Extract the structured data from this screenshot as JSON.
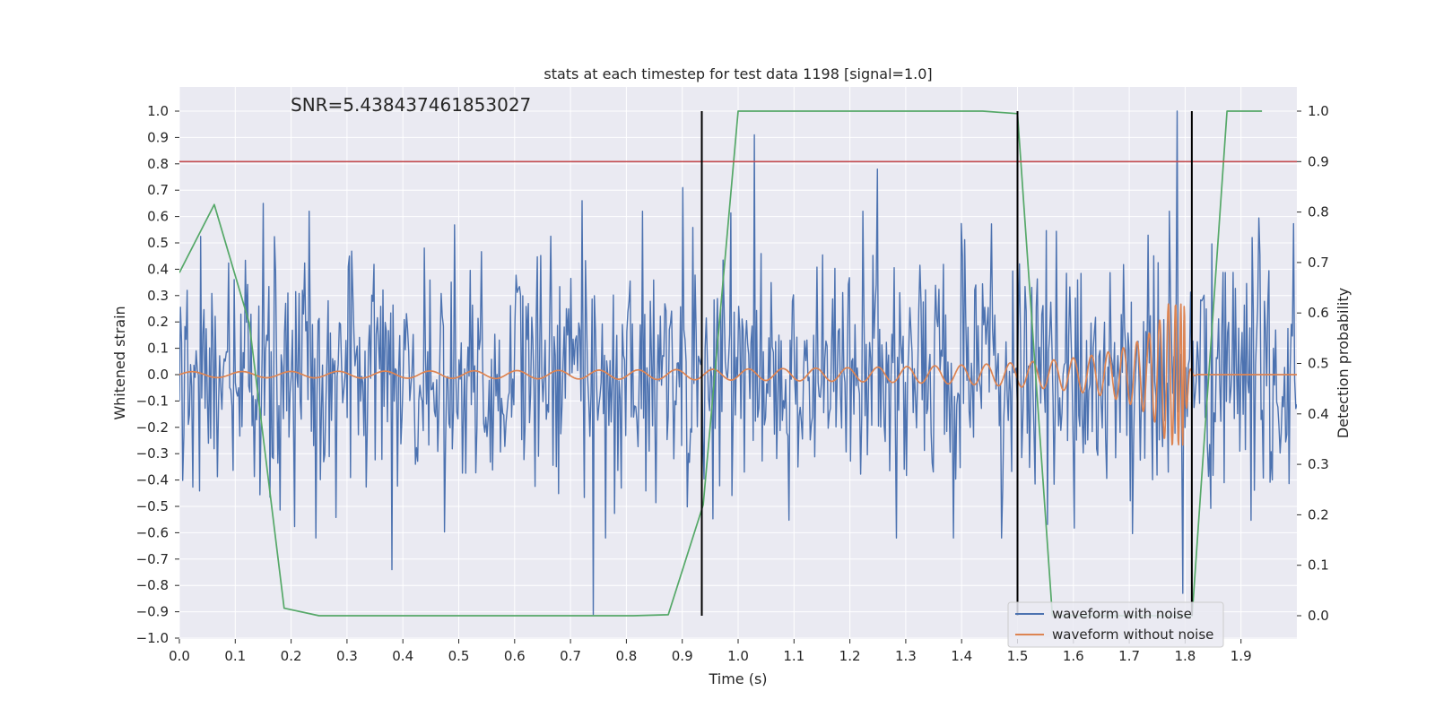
{
  "chart_data": {
    "type": "line",
    "title": "stats at each timestep for test data 1198 [signal=1.0]",
    "xlabel": "Time (s)",
    "ylabel": "Whitened strain",
    "ylabel_right": "Detection probability",
    "xlim": [
      0.0,
      2.0
    ],
    "ylim": [
      -1.0,
      1.0
    ],
    "ylim_right": [
      -0.05,
      1.05
    ],
    "grid": true,
    "annotation": "SNR=5.438437461853027",
    "x_ticks": [
      "0.0",
      "0.1",
      "0.2",
      "0.3",
      "0.4",
      "0.5",
      "0.6",
      "0.7",
      "0.8",
      "0.9",
      "1.0",
      "1.1",
      "1.2",
      "1.3",
      "1.4",
      "1.5",
      "1.6",
      "1.7",
      "1.8",
      "1.9"
    ],
    "x_tick_values": [
      0.0,
      0.1,
      0.2,
      0.3,
      0.4,
      0.5,
      0.6,
      0.7,
      0.8,
      0.9,
      1.0,
      1.1,
      1.2,
      1.3,
      1.4,
      1.5,
      1.6,
      1.7,
      1.8,
      1.9
    ],
    "y_ticks": [
      "1.0",
      "0.9",
      "0.8",
      "0.7",
      "0.6",
      "0.5",
      "0.4",
      "0.3",
      "0.2",
      "0.1",
      "0.0",
      "−0.1",
      "−0.2",
      "−0.3",
      "−0.4",
      "−0.5",
      "−0.6",
      "−0.7",
      "−0.8",
      "−0.9",
      "−1.0"
    ],
    "y_tick_values": [
      1.0,
      0.9,
      0.8,
      0.7,
      0.6,
      0.5,
      0.4,
      0.3,
      0.2,
      0.1,
      0.0,
      -0.1,
      -0.2,
      -0.3,
      -0.4,
      -0.5,
      -0.6,
      -0.7,
      -0.8,
      -0.9,
      -1.0
    ],
    "y_right_ticks": [
      "1.0",
      "0.9",
      "0.8",
      "0.7",
      "0.6",
      "0.5",
      "0.4",
      "0.3",
      "0.2",
      "0.1",
      "0.0"
    ],
    "y_right_tick_values": [
      1.0,
      0.9,
      0.8,
      0.7,
      0.6,
      0.5,
      0.4,
      0.3,
      0.2,
      0.1,
      0.0
    ],
    "threshold": {
      "value": 0.9,
      "axis": "right",
      "color": "#c44e52"
    },
    "vertical_markers": {
      "x": [
        0.935,
        1.5,
        1.812
      ],
      "y_range_right": [
        0.0,
        1.0
      ],
      "color": "#000000"
    },
    "series": [
      {
        "name": "waveform with noise",
        "color": "#4c72b0",
        "axis": "left",
        "in_legend": true,
        "generated": "noise",
        "x_range": [
          0.0,
          2.0
        ],
        "samples": 1000,
        "std": 0.24,
        "spikes": [
          {
            "x": 1.03,
            "y": 0.91
          },
          {
            "x": 1.785,
            "y": 1.0
          },
          {
            "x": 1.795,
            "y": -0.83
          },
          {
            "x": 0.74,
            "y": -0.91
          },
          {
            "x": 1.25,
            "y": 0.78
          },
          {
            "x": 0.38,
            "y": -0.74
          },
          {
            "x": 0.9,
            "y": 0.71
          },
          {
            "x": 0.72,
            "y": 0.66
          },
          {
            "x": 0.15,
            "y": 0.65
          }
        ]
      },
      {
        "name": "waveform without noise",
        "color": "#dd8452",
        "axis": "left",
        "in_legend": true,
        "generated": "chirp",
        "x_range": [
          0.0,
          2.0
        ],
        "merger_x": 1.8,
        "peak_amplitude": 0.27
      },
      {
        "name": "detection probability",
        "color": "#55a868",
        "axis": "right",
        "in_legend": false,
        "x": [
          0.0,
          0.0625,
          0.125,
          0.1875,
          0.25,
          0.3125,
          0.375,
          0.4375,
          0.5,
          0.5625,
          0.625,
          0.6875,
          0.75,
          0.8125,
          0.875,
          0.9375,
          1.0,
          1.0625,
          1.125,
          1.1875,
          1.25,
          1.3125,
          1.375,
          1.4375,
          1.5,
          1.5625,
          1.625,
          1.6875,
          1.75,
          1.8125,
          1.875,
          1.9375
        ],
        "y": [
          0.68,
          0.815,
          0.58,
          0.015,
          0.0,
          0.0,
          0.0,
          0.0,
          0.0,
          0.0,
          0.0,
          0.0,
          0.0,
          0.0,
          0.002,
          0.22,
          1.0,
          1.0,
          1.0,
          1.0,
          1.0,
          1.0,
          1.0,
          1.0,
          0.995,
          0.0,
          0.0,
          0.0,
          0.0,
          0.0,
          1.0,
          1.0
        ]
      }
    ],
    "legend": {
      "position": "lower-right",
      "entries": [
        {
          "label": "waveform with noise",
          "color": "#4c72b0"
        },
        {
          "label": "waveform without noise",
          "color": "#dd8452"
        }
      ]
    }
  }
}
